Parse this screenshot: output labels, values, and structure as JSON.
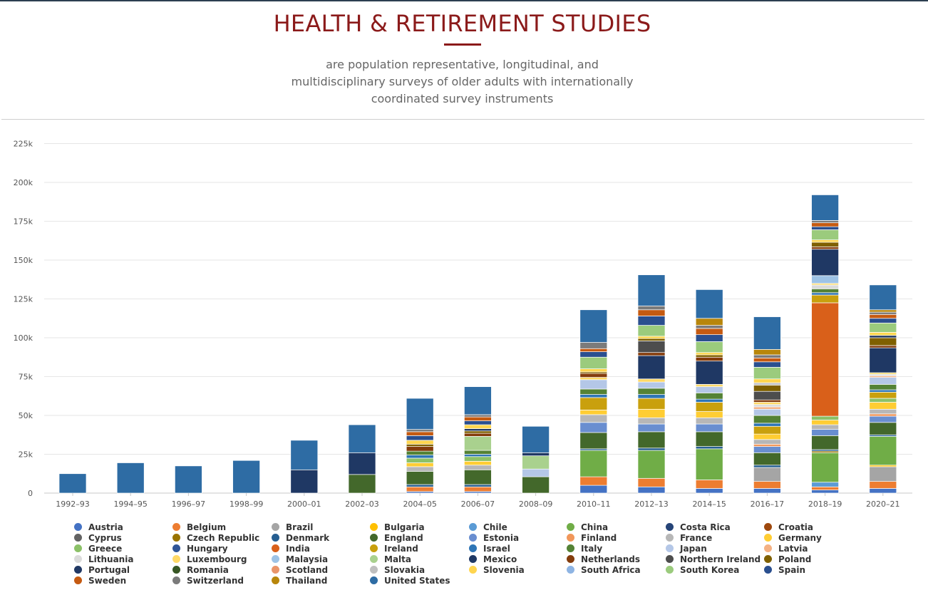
{
  "header": {
    "title": "HEALTH & RETIREMENT STUDIES",
    "subtitle": "are population representative, longitudinal, and multidisciplinary surveys of older adults with internationally coordinated survey instruments"
  },
  "colors": {
    "title": "#8b1a1a",
    "text": "#666666",
    "grid": "#e6e6e6"
  },
  "chart_data": {
    "type": "bar",
    "stacked": true,
    "categories": [
      "1992–93",
      "1994–95",
      "1996–97",
      "1998–99",
      "2000–01",
      "2002–03",
      "2004–05",
      "2006–07",
      "2008–09",
      "2010–11",
      "2012–13",
      "2014–15",
      "2016–17",
      "2018–19",
      "2020–21"
    ],
    "ylim": [
      0,
      225000
    ],
    "y_ticks": [
      0,
      25000,
      50000,
      75000,
      100000,
      125000,
      150000,
      175000,
      200000,
      225000
    ],
    "y_tick_labels": [
      "0",
      "25k",
      "50k",
      "75k",
      "100k",
      "125k",
      "150k",
      "175k",
      "200k",
      "225k"
    ],
    "grid": true,
    "legend_position": "bottom",
    "series": [
      {
        "name": "Austria",
        "color": "#4472c4",
        "values": [
          0,
          0,
          0,
          0,
          0,
          0,
          1000,
          1000,
          0,
          5000,
          4000,
          3000,
          3000,
          2000,
          3000
        ]
      },
      {
        "name": "Belgium",
        "color": "#ed7d31",
        "values": [
          0,
          0,
          0,
          0,
          0,
          0,
          3000,
          3000,
          0,
          5500,
          5500,
          5500,
          4500,
          2000,
          4500
        ]
      },
      {
        "name": "Brazil",
        "color": "#a5a5a5",
        "values": [
          0,
          0,
          0,
          0,
          0,
          0,
          0,
          0,
          0,
          0,
          0,
          0,
          9000,
          0,
          9500
        ]
      },
      {
        "name": "Bulgaria",
        "color": "#ffc000",
        "values": [
          0,
          0,
          0,
          0,
          0,
          0,
          0,
          0,
          0,
          0,
          0,
          0,
          0,
          0,
          1000
        ]
      },
      {
        "name": "Chile",
        "color": "#5b9bd5",
        "values": [
          0,
          0,
          0,
          0,
          0,
          0,
          0,
          0,
          0,
          0,
          0,
          0,
          0,
          3000,
          0
        ]
      },
      {
        "name": "China",
        "color": "#70ad47",
        "values": [
          0,
          0,
          0,
          0,
          0,
          0,
          0,
          0,
          0,
          17000,
          18000,
          20000,
          0,
          19000,
          18500
        ]
      },
      {
        "name": "Costa Rica",
        "color": "#264478",
        "values": [
          0,
          0,
          0,
          0,
          0,
          0,
          0,
          0,
          0,
          0,
          0,
          0,
          0,
          0,
          0
        ]
      },
      {
        "name": "Croatia",
        "color": "#9e480e",
        "values": [
          0,
          0,
          0,
          0,
          0,
          0,
          0,
          0,
          0,
          0,
          0,
          0,
          0,
          0,
          0
        ]
      },
      {
        "name": "Cyprus",
        "color": "#636363",
        "values": [
          0,
          0,
          0,
          0,
          0,
          0,
          0,
          0,
          0,
          0,
          0,
          0,
          0,
          0,
          0
        ]
      },
      {
        "name": "Czech Republic",
        "color": "#997300",
        "values": [
          0,
          0,
          0,
          0,
          0,
          0,
          0,
          0,
          0,
          0,
          0,
          0,
          0,
          1000,
          0
        ]
      },
      {
        "name": "Denmark",
        "color": "#255e91",
        "values": [
          0,
          0,
          0,
          0,
          0,
          0,
          1500,
          1500,
          0,
          1000,
          1500,
          1500,
          1500,
          1000,
          1000
        ]
      },
      {
        "name": "England",
        "color": "#43682b",
        "values": [
          0,
          0,
          0,
          0,
          0,
          12000,
          8500,
          9500,
          10500,
          10500,
          10500,
          9500,
          8000,
          9000,
          8000
        ]
      },
      {
        "name": "Estonia",
        "color": "#698ed0",
        "values": [
          0,
          0,
          0,
          0,
          0,
          0,
          0,
          0,
          0,
          6500,
          5000,
          5000,
          4000,
          4000,
          4000
        ]
      },
      {
        "name": "Finland",
        "color": "#f1975a",
        "values": [
          0,
          0,
          0,
          0,
          0,
          0,
          0,
          0,
          0,
          0,
          0,
          0,
          1500,
          0,
          1500
        ]
      },
      {
        "name": "France",
        "color": "#b7b7b7",
        "values": [
          0,
          0,
          0,
          0,
          0,
          0,
          3000,
          3000,
          0,
          5000,
          4000,
          4000,
          3000,
          3000,
          3000
        ]
      },
      {
        "name": "Germany",
        "color": "#ffcd33",
        "values": [
          0,
          0,
          0,
          0,
          0,
          0,
          2500,
          2500,
          0,
          3000,
          5500,
          4000,
          3500,
          3000,
          4500
        ]
      },
      {
        "name": "Greece",
        "color": "#8cc168",
        "values": [
          0,
          0,
          0,
          0,
          0,
          0,
          3000,
          3000,
          0,
          0,
          0,
          0,
          0,
          2500,
          2500
        ]
      },
      {
        "name": "Hungary",
        "color": "#2f5597",
        "values": [
          0,
          0,
          0,
          0,
          0,
          0,
          0,
          0,
          0,
          0,
          0,
          0,
          0,
          0,
          0
        ]
      },
      {
        "name": "India",
        "color": "#d9601a",
        "values": [
          0,
          0,
          0,
          0,
          0,
          0,
          0,
          0,
          0,
          0,
          0,
          0,
          0,
          73000,
          0
        ]
      },
      {
        "name": "Ireland",
        "color": "#c9a00d",
        "values": [
          0,
          0,
          0,
          0,
          0,
          0,
          0,
          0,
          0,
          8000,
          7000,
          6000,
          5000,
          5000,
          4000
        ]
      },
      {
        "name": "Israel",
        "color": "#2e75b6",
        "values": [
          0,
          0,
          0,
          0,
          0,
          0,
          2000,
          1500,
          0,
          2000,
          2500,
          2000,
          2000,
          1500,
          1500
        ]
      },
      {
        "name": "Italy",
        "color": "#548235",
        "values": [
          0,
          0,
          0,
          0,
          0,
          0,
          2500,
          2500,
          0,
          3500,
          4000,
          4000,
          5000,
          2500,
          3500
        ]
      },
      {
        "name": "Japan",
        "color": "#b4c7e7",
        "values": [
          0,
          0,
          0,
          0,
          0,
          0,
          0,
          0,
          5000,
          6000,
          4000,
          4000,
          4000,
          0,
          4500
        ]
      },
      {
        "name": "Latvia",
        "color": "#f4b183",
        "values": [
          0,
          0,
          0,
          0,
          0,
          0,
          0,
          0,
          0,
          0,
          0,
          0,
          1500,
          0,
          1000
        ]
      },
      {
        "name": "Lithuania",
        "color": "#dbdbdb",
        "values": [
          0,
          0,
          0,
          0,
          0,
          0,
          0,
          0,
          0,
          0,
          0,
          0,
          1500,
          2500,
          1000
        ]
      },
      {
        "name": "Luxembourg",
        "color": "#ffd966",
        "values": [
          0,
          0,
          0,
          0,
          0,
          0,
          0,
          0,
          0,
          1500,
          2000,
          1500,
          1500,
          1000,
          1000
        ]
      },
      {
        "name": "Malaysia",
        "color": "#9dc3e6",
        "values": [
          0,
          0,
          0,
          0,
          0,
          0,
          0,
          0,
          0,
          0,
          0,
          0,
          0,
          5000,
          0
        ]
      },
      {
        "name": "Malta",
        "color": "#a9d18e",
        "values": [
          0,
          0,
          0,
          0,
          0,
          0,
          0,
          9000,
          8500,
          0,
          0,
          0,
          0,
          0,
          0
        ]
      },
      {
        "name": "Mexico",
        "color": "#1f3864",
        "values": [
          0,
          0,
          0,
          0,
          15000,
          14000,
          0,
          0,
          2000,
          0,
          15000,
          15000,
          0,
          17000,
          16000
        ]
      },
      {
        "name": "Netherlands",
        "color": "#843c0c",
        "values": [
          0,
          0,
          0,
          0,
          0,
          0,
          3000,
          2000,
          0,
          2500,
          2000,
          2500,
          1500,
          1500,
          1500
        ]
      },
      {
        "name": "Northern Ireland",
        "color": "#4d4d4d",
        "values": [
          0,
          0,
          0,
          0,
          0,
          0,
          0,
          0,
          0,
          0,
          7500,
          0,
          5500,
          0,
          0
        ]
      },
      {
        "name": "Poland",
        "color": "#7f6000",
        "values": [
          0,
          0,
          0,
          0,
          0,
          0,
          1500,
          1500,
          0,
          1000,
          1500,
          1500,
          4000,
          3000,
          5000
        ]
      },
      {
        "name": "Portugal",
        "color": "#203864",
        "values": [
          0,
          0,
          0,
          0,
          0,
          0,
          0,
          1500,
          0,
          0,
          0,
          0,
          0,
          0,
          1500
        ]
      },
      {
        "name": "Romania",
        "color": "#375623",
        "values": [
          0,
          0,
          0,
          0,
          0,
          0,
          0,
          0,
          0,
          0,
          0,
          0,
          0,
          0,
          0
        ]
      },
      {
        "name": "Scotland",
        "color": "#e9956a",
        "values": [
          0,
          0,
          0,
          0,
          0,
          0,
          0,
          0,
          0,
          0,
          0,
          0,
          0,
          0,
          0
        ]
      },
      {
        "name": "Slovakia",
        "color": "#bfbfbf",
        "values": [
          0,
          0,
          0,
          0,
          0,
          0,
          0,
          0,
          0,
          0,
          0,
          0,
          1500,
          0,
          0
        ]
      },
      {
        "name": "Slovenia",
        "color": "#ffd54f",
        "values": [
          0,
          0,
          0,
          0,
          0,
          0,
          2500,
          2500,
          0,
          2000,
          1500,
          1500,
          2500,
          1500,
          2000
        ]
      },
      {
        "name": "South Africa",
        "color": "#8eb4e3",
        "values": [
          0,
          0,
          0,
          0,
          0,
          0,
          0,
          0,
          0,
          0,
          0,
          0,
          0,
          0,
          0
        ]
      },
      {
        "name": "South Korea",
        "color": "#9bcb7d",
        "values": [
          0,
          0,
          0,
          0,
          0,
          0,
          0,
          0,
          0,
          7500,
          7000,
          7000,
          7500,
          6500,
          6000
        ]
      },
      {
        "name": "Spain",
        "color": "#2a4f8f",
        "values": [
          0,
          0,
          0,
          0,
          0,
          0,
          3000,
          2500,
          0,
          3500,
          6000,
          4500,
          3500,
          2000,
          3000
        ]
      },
      {
        "name": "Sweden",
        "color": "#c55a11",
        "values": [
          0,
          0,
          0,
          0,
          0,
          0,
          2500,
          2500,
          0,
          2000,
          4000,
          4000,
          2500,
          2500,
          2500
        ]
      },
      {
        "name": "Switzerland",
        "color": "#7b7b7b",
        "values": [
          0,
          0,
          0,
          0,
          0,
          0,
          1500,
          1500,
          0,
          4000,
          2500,
          2000,
          2000,
          1500,
          1500
        ]
      },
      {
        "name": "Thailand",
        "color": "#b8860b",
        "values": [
          0,
          0,
          0,
          0,
          0,
          0,
          0,
          0,
          0,
          0,
          0,
          4500,
          3500,
          0,
          1500
        ]
      },
      {
        "name": "United States",
        "color": "#2e6ca4",
        "values": [
          12500,
          19500,
          17500,
          21000,
          19000,
          18000,
          20000,
          18000,
          17000,
          21000,
          20000,
          18500,
          21000,
          16500,
          16000
        ]
      }
    ]
  }
}
